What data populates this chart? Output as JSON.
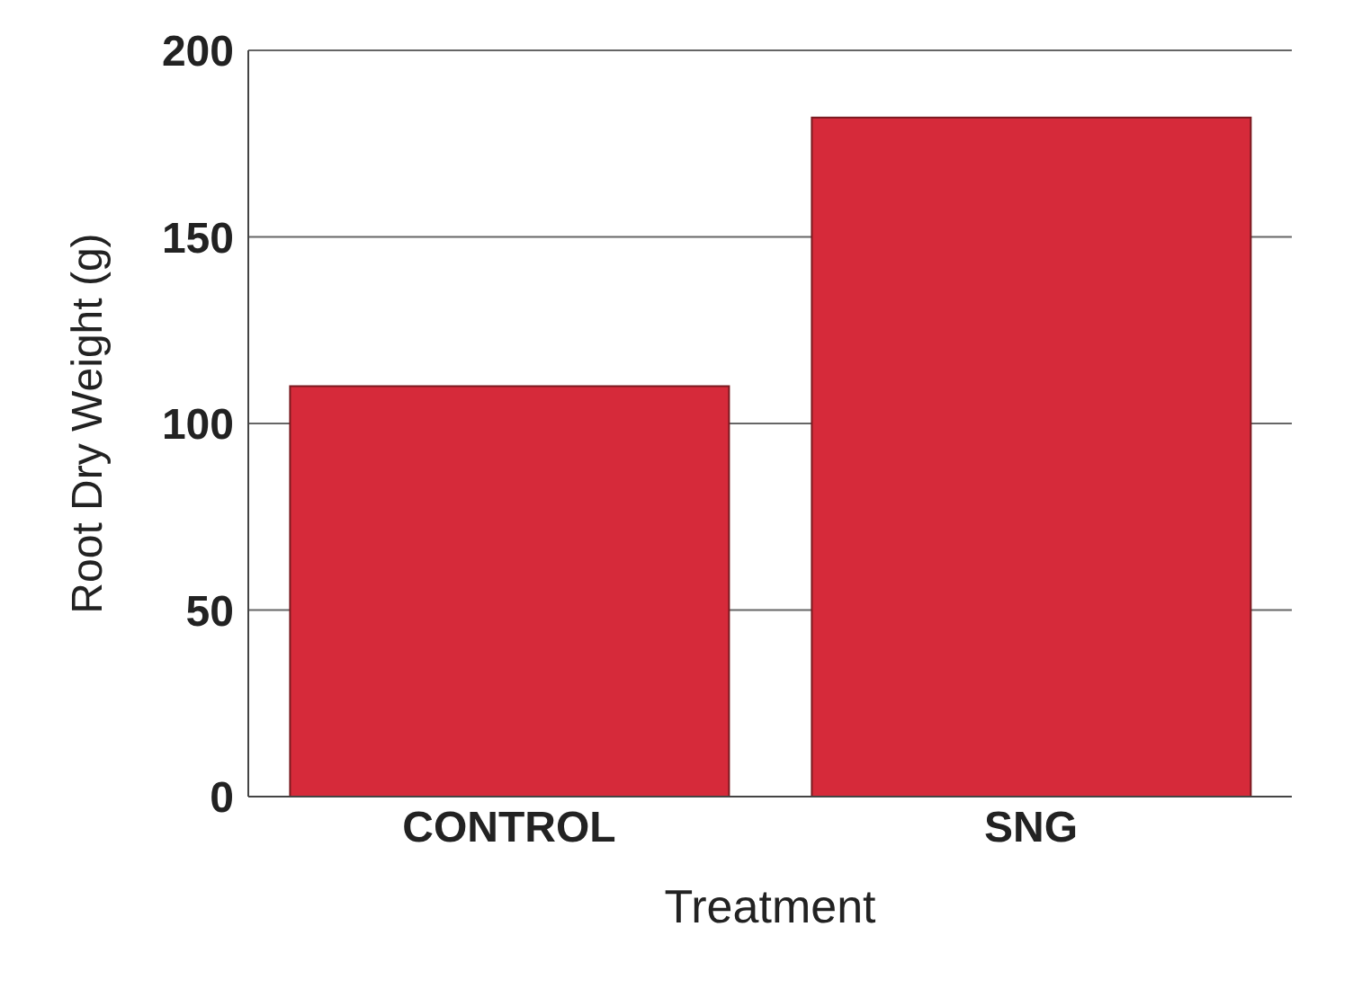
{
  "chart_data": {
    "type": "bar",
    "xlabel": "Treatment",
    "ylabel": "Root Dry Weight (g)",
    "categories": [
      "CONTROL",
      "SNG"
    ],
    "values": [
      110,
      182
    ],
    "color": "#d62a3a",
    "ylim": [
      0,
      200
    ],
    "yticks": [
      0,
      50,
      100,
      150,
      200
    ],
    "grid": "y"
  }
}
